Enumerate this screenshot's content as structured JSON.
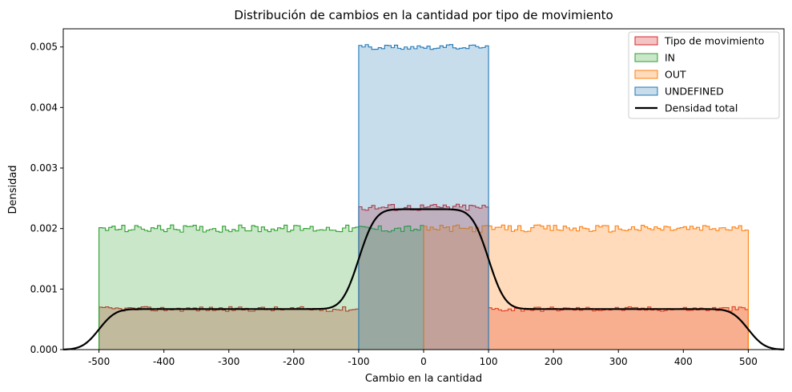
{
  "chart_data": {
    "type": "histogram",
    "title": "Distribución de cambios en la cantidad por tipo de movimiento",
    "xlabel": "Cambio en la cantidad",
    "ylabel": "Densidad",
    "xlim": [
      -555,
      555
    ],
    "ylim": [
      0,
      0.0053
    ],
    "x_ticks": [
      -500,
      -400,
      -300,
      -200,
      -100,
      0,
      100,
      200,
      300,
      400,
      500
    ],
    "y_ticks": [
      0.0,
      0.001,
      0.002,
      0.003,
      0.004,
      0.005
    ],
    "y_tick_labels": [
      "0.000",
      "0.001",
      "0.002",
      "0.003",
      "0.004",
      "0.005"
    ],
    "grid": false,
    "legend_position": "top-right",
    "series": [
      {
        "name": "Tipo de movimiento",
        "color": "#d62728",
        "fill_opacity": 0.28,
        "segments": [
          {
            "x_start": -500,
            "x_end": -100,
            "level": 0.00067,
            "noise": 4e-05
          },
          {
            "x_start": -100,
            "x_end": 100,
            "level": 0.00235,
            "noise": 6e-05
          },
          {
            "x_start": 100,
            "x_end": 500,
            "level": 0.00067,
            "noise": 4e-05
          }
        ]
      },
      {
        "name": "IN",
        "color": "#2ca02c",
        "fill_opacity": 0.25,
        "segments": [
          {
            "x_start": -500,
            "x_end": 0,
            "level": 0.002,
            "noise": 6e-05
          }
        ]
      },
      {
        "name": "OUT",
        "color": "#ff7f0e",
        "fill_opacity": 0.28,
        "segments": [
          {
            "x_start": 0,
            "x_end": 500,
            "level": 0.002,
            "noise": 6e-05
          }
        ]
      },
      {
        "name": "UNDEFINED",
        "color": "#1f77b4",
        "fill_opacity": 0.25,
        "segments": [
          {
            "x_start": -100,
            "x_end": 100,
            "level": 0.005,
            "noise": 4e-05
          }
        ]
      }
    ],
    "kde": {
      "name": "Densidad total",
      "color": "#000000",
      "segments": [
        {
          "x_start": -500,
          "x_end": -100,
          "level": 0.00067
        },
        {
          "x_start": -100,
          "x_end": 100,
          "level": 0.00232
        },
        {
          "x_start": 100,
          "x_end": 500,
          "level": 0.00067
        }
      ],
      "x_range": [
        -555,
        555
      ],
      "bandwidth": 20
    }
  }
}
